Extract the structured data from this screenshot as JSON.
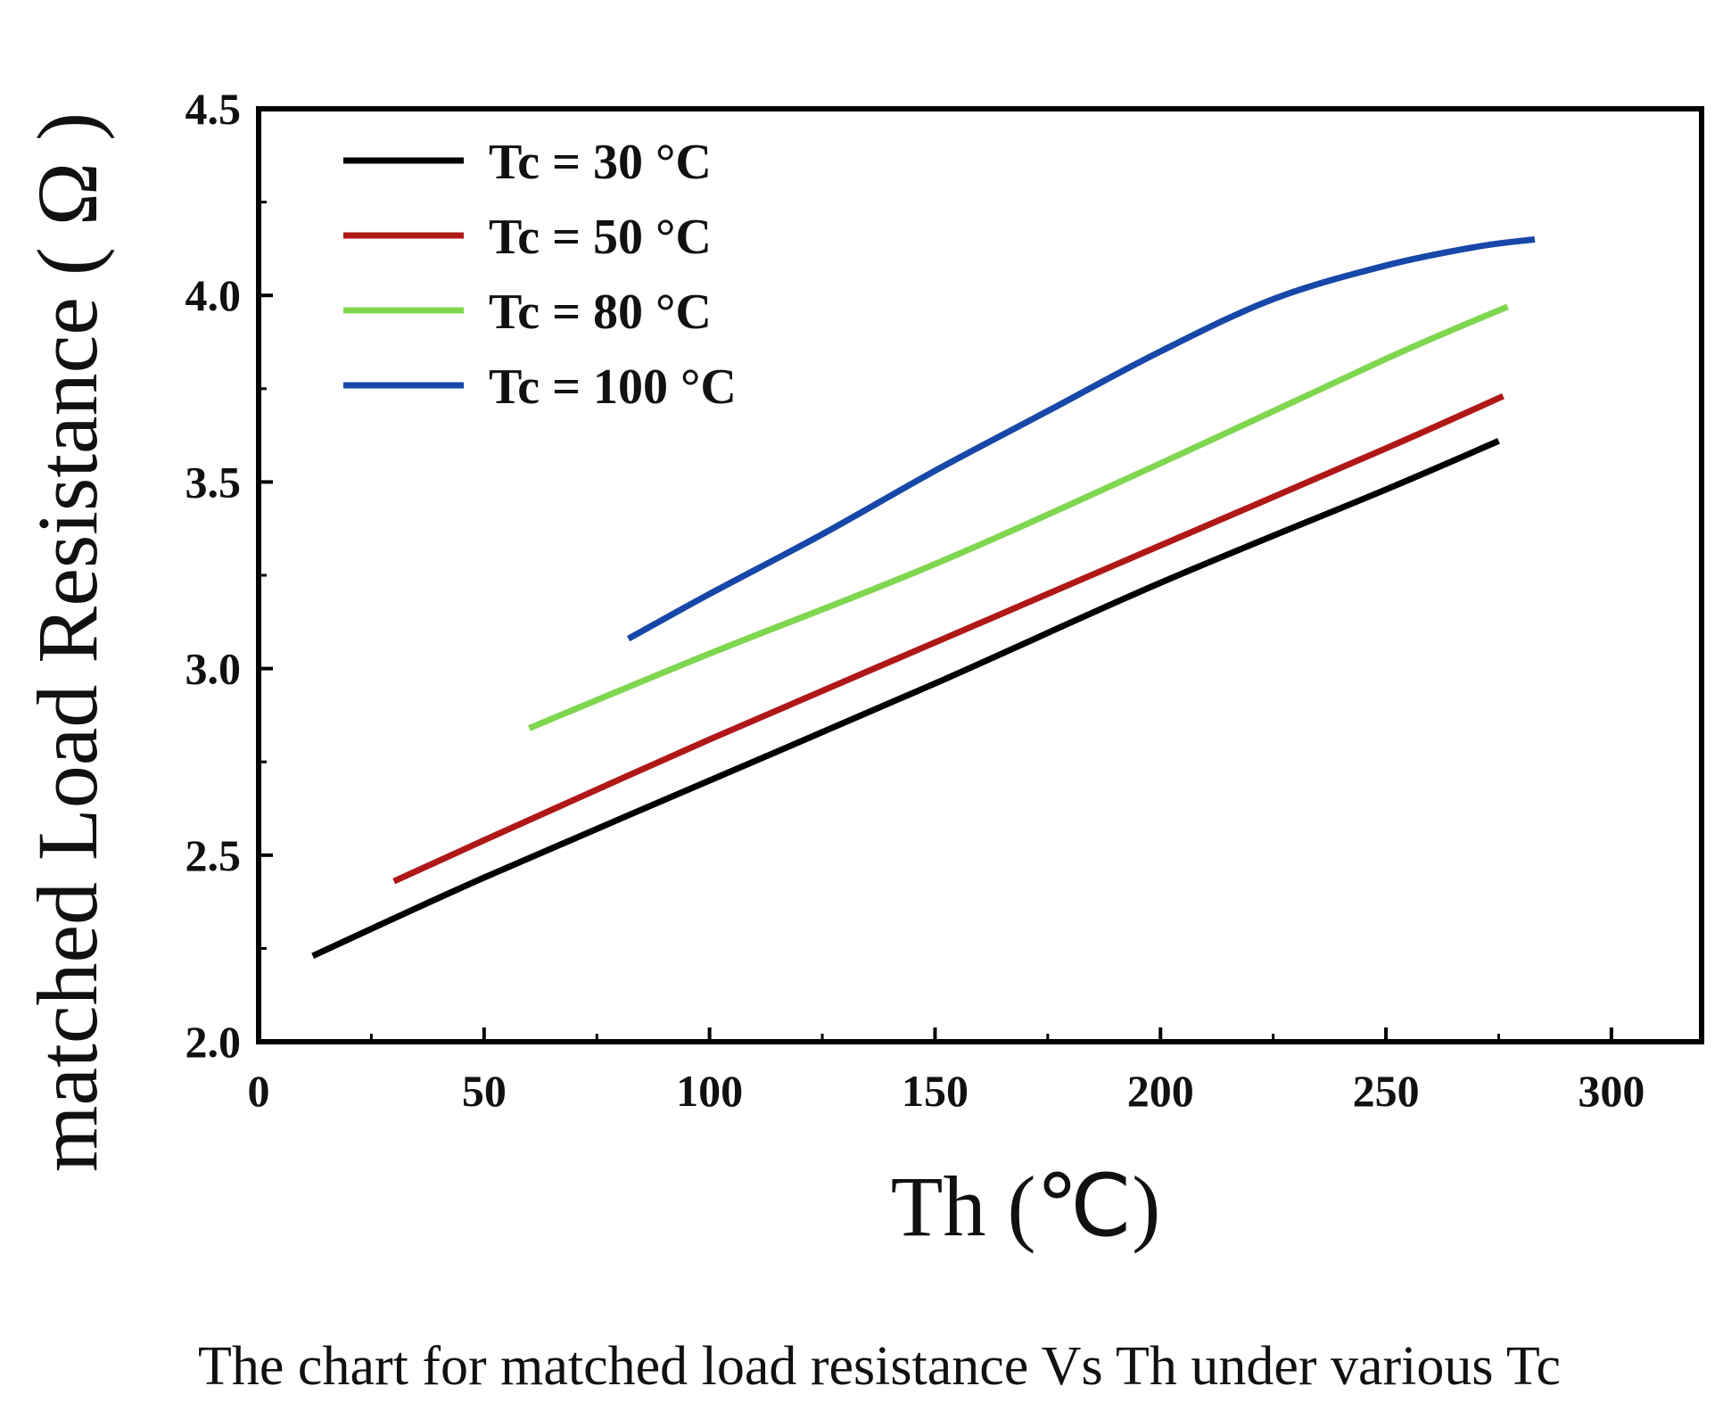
{
  "chart_data": {
    "type": "line",
    "title": "",
    "xlabel": "Th (℃)",
    "ylabel": "matched Load Resistance ( Ω )",
    "xlim": [
      0,
      320
    ],
    "ylim": [
      2.0,
      4.5
    ],
    "xticks": [
      0,
      50,
      100,
      150,
      200,
      250,
      300
    ],
    "yticks": [
      2.0,
      2.5,
      3.0,
      3.5,
      4.0,
      4.5
    ],
    "xtick_labels": [
      "0",
      "50",
      "100",
      "150",
      "200",
      "250",
      "300"
    ],
    "ytick_labels": [
      "2.0",
      "2.5",
      "3.0",
      "3.5",
      "4.0",
      "4.5"
    ],
    "legend_position": "top-left",
    "grid": false,
    "series": [
      {
        "name": "Tc = 30 °C",
        "color": "#000000",
        "x": [
          12,
          50,
          100,
          150,
          200,
          250,
          275
        ],
        "y": [
          2.23,
          2.44,
          2.7,
          2.96,
          3.23,
          3.48,
          3.61
        ]
      },
      {
        "name": "Tc = 50 °C",
        "color": "#b01818",
        "x": [
          30,
          50,
          100,
          150,
          200,
          250,
          276
        ],
        "y": [
          2.43,
          2.54,
          2.81,
          3.07,
          3.33,
          3.59,
          3.73
        ]
      },
      {
        "name": "Tc = 80 °C",
        "color": "#7fd64f",
        "x": [
          60,
          100,
          150,
          200,
          250,
          277
        ],
        "y": [
          2.84,
          3.04,
          3.28,
          3.55,
          3.83,
          3.97
        ]
      },
      {
        "name": "Tc = 100 °C",
        "color": "#1747a8",
        "x": [
          82,
          100,
          125,
          150,
          175,
          200,
          225,
          250,
          270,
          283
        ],
        "y": [
          3.08,
          3.2,
          3.36,
          3.53,
          3.69,
          3.85,
          3.99,
          4.08,
          4.13,
          4.15
        ]
      }
    ]
  },
  "caption": "The chart for matched load resistance Vs Th under various Tc"
}
